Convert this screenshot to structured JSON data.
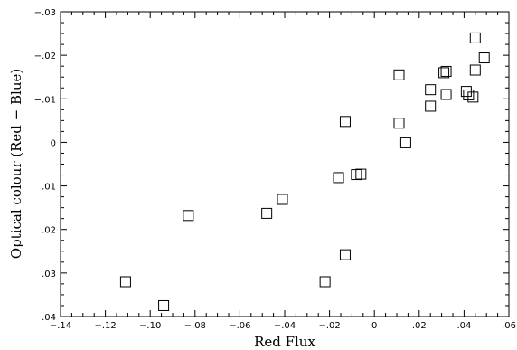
{
  "chart_data": {
    "type": "scatter",
    "title": "",
    "xlabel": "Red Flux",
    "ylabel": "Optical colour (Red − Blue)",
    "xlim": [
      -0.14,
      0.06
    ],
    "ylim": [
      0.04,
      -0.03
    ],
    "y_axis_inverted": true,
    "grid": false,
    "legend": "none",
    "marker": "open-square",
    "color": "#000000",
    "x_ticks": [
      -0.14,
      -0.12,
      -0.1,
      -0.08,
      -0.06,
      -0.04,
      -0.02,
      0.0,
      0.02,
      0.04,
      0.06
    ],
    "x_tick_labels": [
      "−.14",
      "−.12",
      "−.10",
      "−.08",
      "−.06",
      "−.04",
      "−.02",
      "0",
      ".02",
      ".04",
      ".06"
    ],
    "y_ticks": [
      -0.03,
      -0.02,
      -0.01,
      0.0,
      0.01,
      0.02,
      0.03,
      0.04
    ],
    "y_tick_labels": [
      "−.03",
      "−.02",
      "−.01",
      "0",
      ".01",
      ".02",
      ".03",
      ".04"
    ],
    "points": [
      {
        "x": -0.111,
        "y": 0.032
      },
      {
        "x": -0.094,
        "y": 0.0375
      },
      {
        "x": -0.083,
        "y": 0.0168
      },
      {
        "x": -0.048,
        "y": 0.0163
      },
      {
        "x": -0.041,
        "y": 0.0131
      },
      {
        "x": -0.022,
        "y": 0.032
      },
      {
        "x": -0.016,
        "y": 0.0081
      },
      {
        "x": -0.013,
        "y": -0.0048
      },
      {
        "x": -0.013,
        "y": 0.0258
      },
      {
        "x": -0.008,
        "y": 0.0074
      },
      {
        "x": -0.006,
        "y": 0.0073
      },
      {
        "x": 0.011,
        "y": -0.0155
      },
      {
        "x": 0.011,
        "y": -0.0044
      },
      {
        "x": 0.014,
        "y": 0.0001
      },
      {
        "x": 0.025,
        "y": -0.0121
      },
      {
        "x": 0.025,
        "y": -0.0083
      },
      {
        "x": 0.031,
        "y": -0.016
      },
      {
        "x": 0.032,
        "y": -0.0163
      },
      {
        "x": 0.032,
        "y": -0.011
      },
      {
        "x": 0.041,
        "y": -0.0117
      },
      {
        "x": 0.042,
        "y": -0.0109
      },
      {
        "x": 0.044,
        "y": -0.0104
      },
      {
        "x": 0.045,
        "y": -0.024
      },
      {
        "x": 0.045,
        "y": -0.0166
      },
      {
        "x": 0.049,
        "y": -0.0194
      }
    ]
  }
}
